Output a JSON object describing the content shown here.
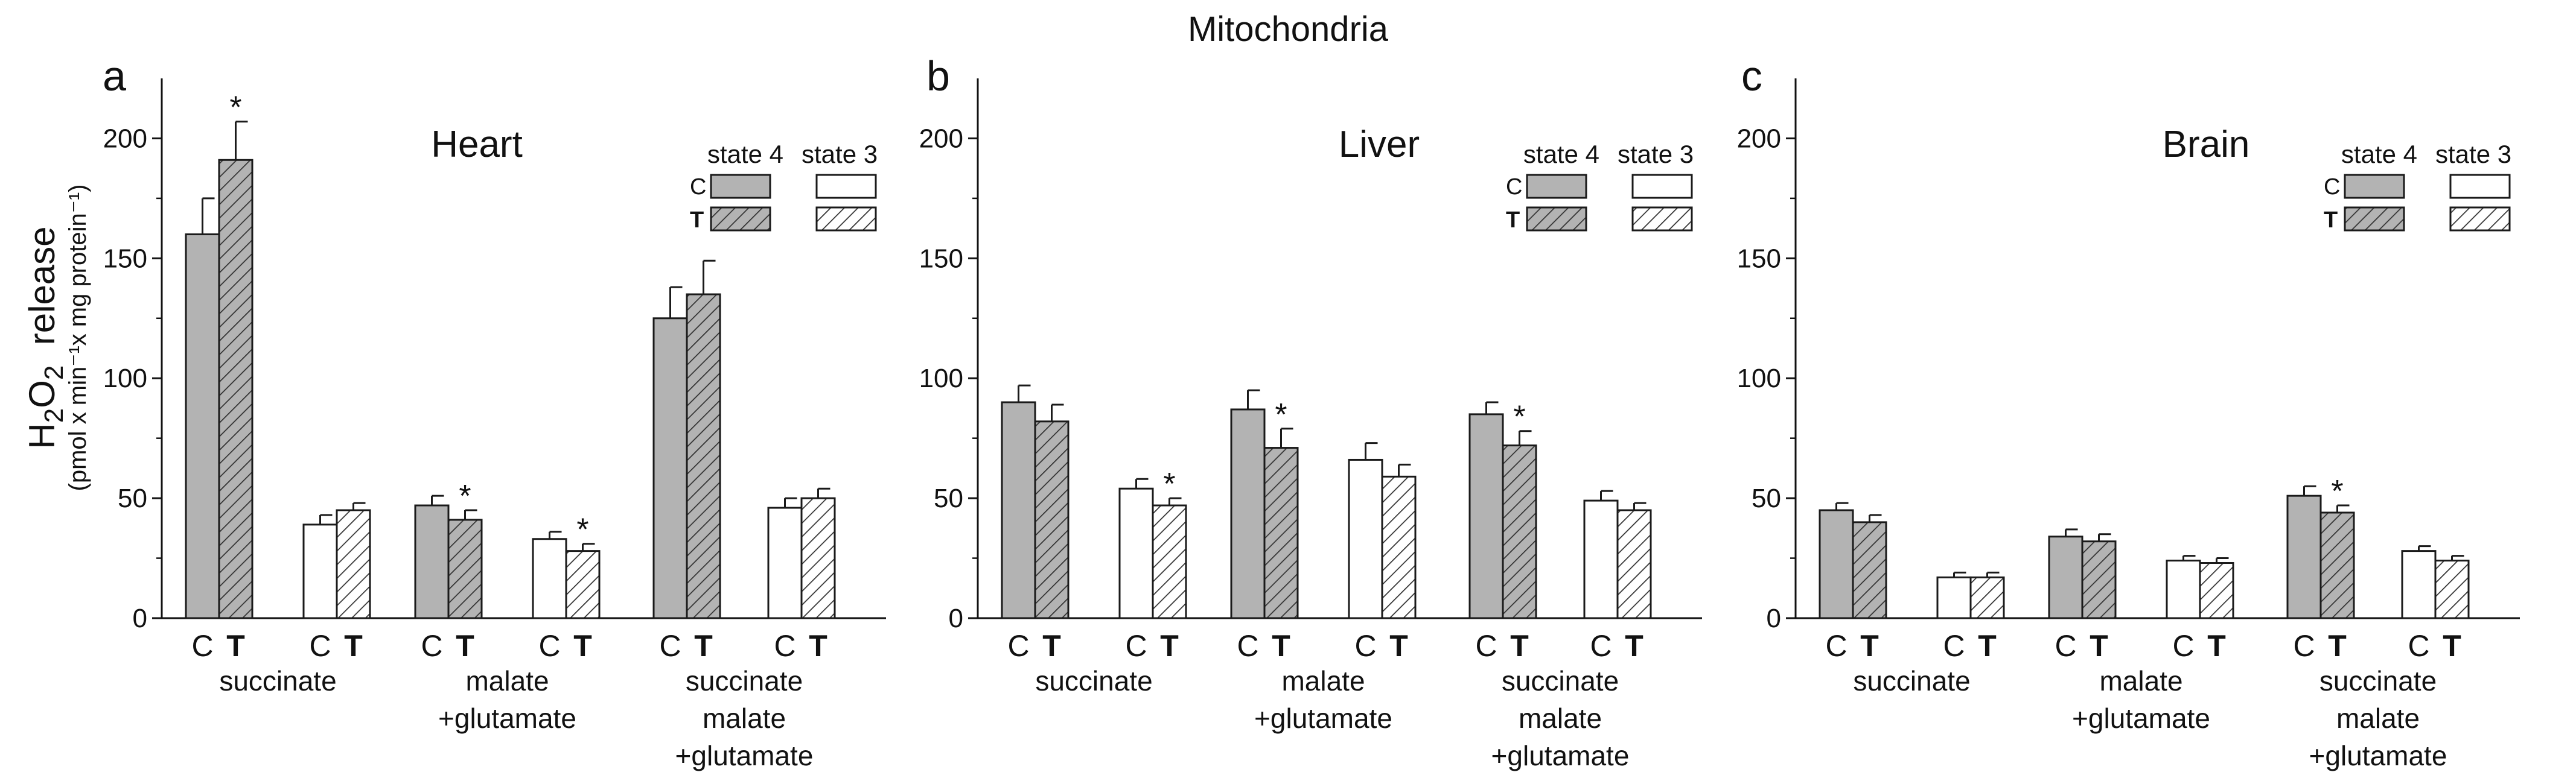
{
  "figure_title": "Mitochondria",
  "y_axis_label": {
    "main_prefix": "H",
    "main_sub1": "2",
    "main_mid": "O",
    "main_sub2": "2",
    "main_suffix": "  release",
    "units": "(pmol x min⁻¹x mg protein⁻¹)"
  },
  "legend_text": {
    "state4": "state 4",
    "state3": "state 3",
    "control": "C",
    "treated": "T"
  },
  "group_labels": [
    [
      "succinate"
    ],
    [
      "malate",
      "+glutamate"
    ],
    [
      "succinate",
      "malate",
      "+glutamate"
    ]
  ],
  "significance_marker": "*",
  "colors": {
    "state4_fill": "#b3b3b3",
    "state3_fill": "#ffffff",
    "stroke": "#1a1a1a",
    "hatch": "#333333"
  },
  "chart_data": [
    {
      "type": "bar",
      "panel": "a",
      "title": "Heart",
      "ylim": [
        0,
        225
      ],
      "yticks": [
        0,
        50,
        100,
        150,
        200
      ],
      "categories": [
        "C",
        "T",
        "C",
        "T",
        "C",
        "T",
        "C",
        "T",
        "C",
        "T",
        "C",
        "T"
      ],
      "states": [
        "state 4",
        "state 4",
        "state 3",
        "state 3",
        "state 4",
        "state 4",
        "state 3",
        "state 3",
        "state 4",
        "state 4",
        "state 3",
        "state 3"
      ],
      "values": [
        160,
        191,
        39,
        45,
        47,
        41,
        33,
        28,
        125,
        135,
        46,
        50
      ],
      "errors": [
        15,
        16,
        4,
        3,
        4,
        4,
        3,
        3,
        13,
        14,
        4,
        4
      ],
      "significant": [
        false,
        true,
        false,
        false,
        false,
        true,
        false,
        true,
        false,
        false,
        false,
        false
      ]
    },
    {
      "type": "bar",
      "panel": "b",
      "title": "Liver",
      "ylim": [
        0,
        225
      ],
      "yticks": [
        0,
        50,
        100,
        150,
        200
      ],
      "categories": [
        "C",
        "T",
        "C",
        "T",
        "C",
        "T",
        "C",
        "T",
        "C",
        "T",
        "C",
        "T"
      ],
      "states": [
        "state 4",
        "state 4",
        "state 3",
        "state 3",
        "state 4",
        "state 4",
        "state 3",
        "state 3",
        "state 4",
        "state 4",
        "state 3",
        "state 3"
      ],
      "values": [
        90,
        82,
        54,
        47,
        87,
        71,
        66,
        59,
        85,
        72,
        49,
        45
      ],
      "errors": [
        7,
        7,
        4,
        3,
        8,
        8,
        7,
        5,
        5,
        6,
        4,
        3
      ],
      "significant": [
        false,
        false,
        false,
        true,
        false,
        true,
        false,
        false,
        false,
        true,
        false,
        false
      ]
    },
    {
      "type": "bar",
      "panel": "c",
      "title": "Brain",
      "ylim": [
        0,
        225
      ],
      "yticks": [
        0,
        50,
        100,
        150,
        200
      ],
      "categories": [
        "C",
        "T",
        "C",
        "T",
        "C",
        "T",
        "C",
        "T",
        "C",
        "T",
        "C",
        "T"
      ],
      "states": [
        "state 4",
        "state 4",
        "state 3",
        "state 3",
        "state 4",
        "state 4",
        "state 3",
        "state 3",
        "state 4",
        "state 4",
        "state 3",
        "state 3"
      ],
      "values": [
        45,
        40,
        17,
        17,
        34,
        32,
        24,
        23,
        51,
        44,
        28,
        24
      ],
      "errors": [
        3,
        3,
        2,
        2,
        3,
        3,
        2,
        2,
        4,
        3,
        2,
        2
      ],
      "significant": [
        false,
        false,
        false,
        false,
        false,
        false,
        false,
        false,
        false,
        true,
        false,
        false
      ]
    }
  ]
}
